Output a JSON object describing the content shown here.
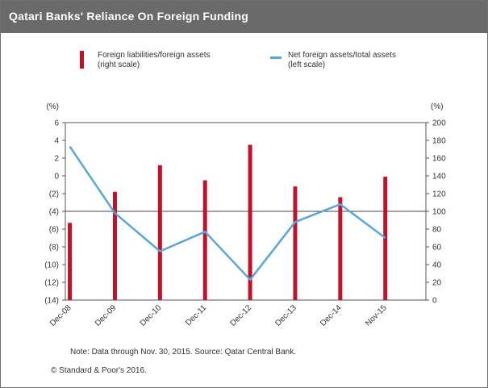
{
  "title": "Qatari Banks' Reliance On Foreign Funding",
  "legend": {
    "bar_label": [
      "Foreign liabilities/foreign assets",
      "(right scale)"
    ],
    "line_label": [
      "Net foreign assets/total assets",
      "(left scale)"
    ]
  },
  "note": "Note: Data through Nov. 30, 2015. Source: Qatar Central Bank.",
  "copyright": "© Standard & Poor's 2016.",
  "colors": {
    "bar": "#c0122b",
    "line": "#5ba6d6",
    "title_bg": "#6a6a6a"
  },
  "chart_data": {
    "type": "bar+line",
    "categories": [
      "Dec-08",
      "Dec-09",
      "Dec-10",
      "Dec-11",
      "Dec-12",
      "Dec-13",
      "Dec-14",
      "Nov-15"
    ],
    "left_axis": {
      "label": "(%)",
      "min": -14,
      "max": 6,
      "ticks": [
        "6",
        "4",
        "2",
        "0",
        "(2)",
        "(4)",
        "(6)",
        "(8)",
        "(10)",
        "(12)",
        "(14)"
      ],
      "tick_values": [
        6,
        4,
        2,
        0,
        -2,
        -4,
        -6,
        -8,
        -10,
        -12,
        -14
      ]
    },
    "right_axis": {
      "label": "(%)",
      "min": 0,
      "max": 200,
      "ticks": [
        "200",
        "180",
        "160",
        "140",
        "120",
        "100",
        "80",
        "60",
        "40",
        "20",
        "0"
      ],
      "tick_values": [
        200,
        180,
        160,
        140,
        120,
        100,
        80,
        60,
        40,
        20,
        0
      ]
    },
    "series": [
      {
        "name": "Foreign liabilities/foreign assets",
        "axis": "right",
        "kind": "bar",
        "values": [
          87,
          122,
          152,
          135,
          175,
          128,
          116,
          139
        ]
      },
      {
        "name": "Net foreign assets/total assets",
        "axis": "left",
        "kind": "line",
        "values": [
          3.3,
          -4.2,
          -8.5,
          -6.3,
          -11.7,
          -5.2,
          -3.2,
          -7.0
        ]
      }
    ],
    "reference_line": {
      "axis": "right",
      "value": 100
    },
    "grid": false
  }
}
